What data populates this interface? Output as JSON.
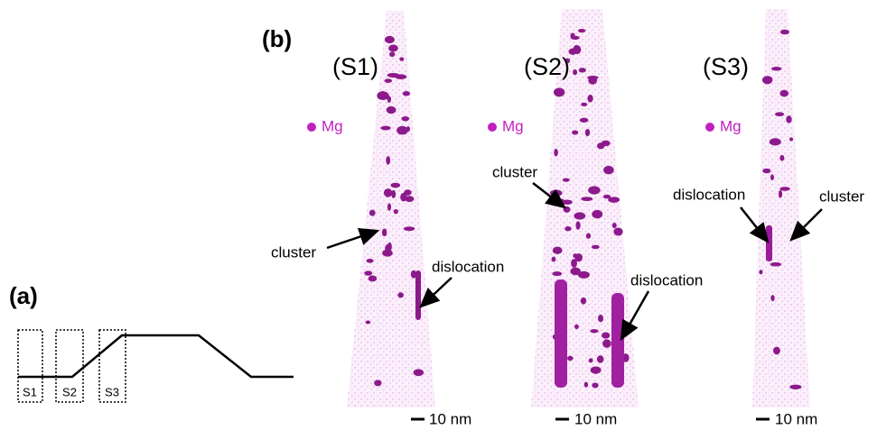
{
  "panel_a": {
    "label": "(a)",
    "boxes": [
      "S1",
      "S2",
      "S3"
    ]
  },
  "panel_b": {
    "label": "(b)",
    "tips": [
      {
        "title": "(S1)",
        "legend": "Mg",
        "annotations": [
          "cluster",
          "dislocation"
        ],
        "scale_bar": "10 nm"
      },
      {
        "title": "(S2)",
        "legend": "Mg",
        "annotations": [
          "cluster",
          "dislocation"
        ],
        "scale_bar": "10 nm"
      },
      {
        "title": "(S3)",
        "legend": "Mg",
        "annotations": [
          "dislocation",
          "cluster"
        ],
        "scale_bar": "10 nm"
      }
    ]
  }
}
